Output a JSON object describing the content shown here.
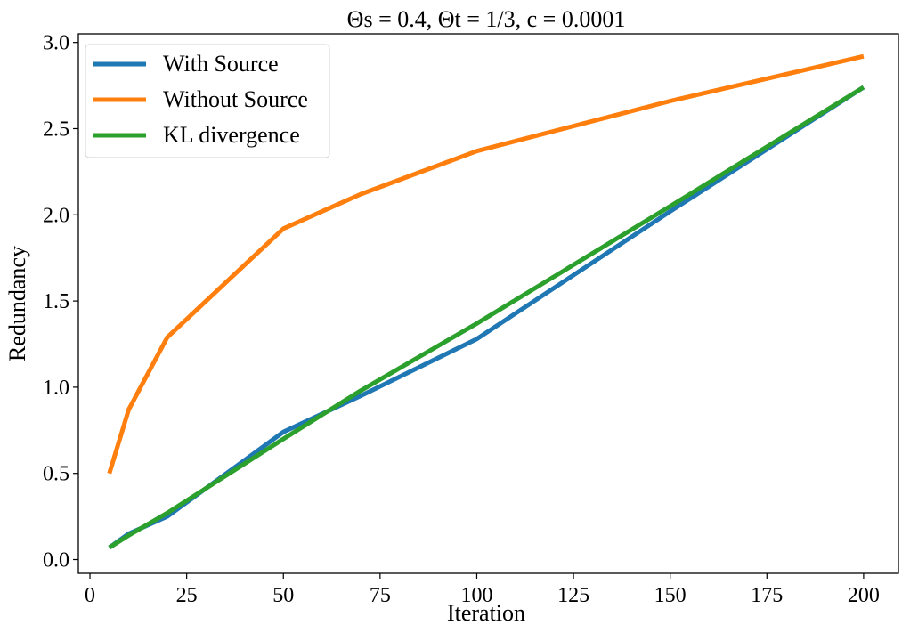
{
  "chart_data": {
    "type": "line",
    "title": "Θs = 0.4, Θt = 1/3, c = 0.0001",
    "xlabel": "Iteration",
    "ylabel": "Redundancy",
    "xlim": [
      -3,
      209
    ],
    "ylim": [
      -0.08,
      3.05
    ],
    "xticks": [
      0,
      25,
      50,
      75,
      100,
      125,
      150,
      175,
      200
    ],
    "yticks": [
      0.0,
      0.5,
      1.0,
      1.5,
      2.0,
      2.5,
      3.0
    ],
    "ytick_labels": [
      "0.0",
      "0.5",
      "1.0",
      "1.5",
      "2.0",
      "2.5",
      "3.0"
    ],
    "xtick_labels": [
      "0",
      "25",
      "50",
      "75",
      "100",
      "125",
      "150",
      "175",
      "200"
    ],
    "grid": false,
    "legend_position": "top-left",
    "series": [
      {
        "name": "With Source",
        "color": "#1f77b4",
        "x": [
          5,
          10,
          20,
          50,
          70,
          100,
          150,
          200
        ],
        "y": [
          0.07,
          0.15,
          0.25,
          0.74,
          0.95,
          1.28,
          2.02,
          2.74
        ]
      },
      {
        "name": "Without Source",
        "color": "#ff7f0e",
        "x": [
          5,
          10,
          20,
          50,
          70,
          100,
          150,
          200
        ],
        "y": [
          0.5,
          0.87,
          1.29,
          1.92,
          2.12,
          2.37,
          2.66,
          2.92
        ]
      },
      {
        "name": "KL divergence",
        "color": "#2ca02c",
        "x": [
          5,
          10,
          20,
          50,
          70,
          100,
          150,
          200
        ],
        "y": [
          0.07,
          0.14,
          0.27,
          0.7,
          0.98,
          1.37,
          2.05,
          2.74
        ]
      }
    ]
  }
}
